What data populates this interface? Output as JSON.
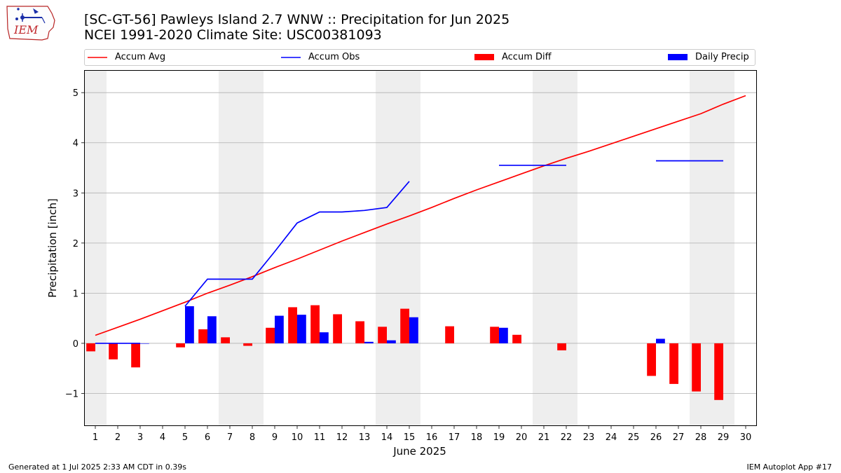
{
  "logo": {
    "text": "IEM",
    "icon": "iem-iowa-logo-icon"
  },
  "header": {
    "title": "[SC-GT-56] Pawleys Island 2.7 WNW :: Precipitation for Jun 2025",
    "subtitle": "NCEI 1991-2020 Climate Site: USC00381093"
  },
  "footer": {
    "left": "Generated at 1 Jul 2025 2:33 AM CDT in 0.39s",
    "right": "IEM Autoplot App #17"
  },
  "legend": [
    {
      "label": "Accum Avg",
      "kind": "line",
      "color": "#ff0000"
    },
    {
      "label": "Accum Obs",
      "kind": "line",
      "color": "#0000ff"
    },
    {
      "label": "Accum Diff",
      "kind": "bar",
      "color": "#ff0000"
    },
    {
      "label": "Daily Precip",
      "kind": "bar",
      "color": "#0000ff"
    }
  ],
  "chart_data": {
    "type": "bar",
    "xlabel": "June 2025",
    "ylabel": "Precipitation [inch]",
    "xlim": [
      0.5,
      30.5
    ],
    "ylim": [
      -1.65,
      5.45
    ],
    "x_ticks": [
      1,
      2,
      3,
      4,
      5,
      6,
      7,
      8,
      9,
      10,
      11,
      12,
      13,
      14,
      15,
      16,
      17,
      18,
      19,
      20,
      21,
      22,
      23,
      24,
      25,
      26,
      27,
      28,
      29,
      30
    ],
    "y_ticks": [
      -1,
      0,
      1,
      2,
      3,
      4,
      5
    ],
    "grid": "y",
    "weekend_shading": [
      [
        0.5,
        1.5
      ],
      [
        6.5,
        8.5
      ],
      [
        13.5,
        15.5
      ],
      [
        20.5,
        22.5
      ],
      [
        27.5,
        29.5
      ]
    ],
    "shading_color": "#eeeeee",
    "series": [
      {
        "name": "Accum Avg",
        "kind": "line",
        "color": "#ff0000",
        "x": [
          1,
          2,
          3,
          4,
          5,
          6,
          7,
          8,
          9,
          10,
          11,
          12,
          13,
          14,
          15,
          16,
          17,
          18,
          19,
          20,
          21,
          22,
          23,
          24,
          25,
          26,
          27,
          28,
          29,
          30
        ],
        "values": [
          0.16,
          0.32,
          0.48,
          0.65,
          0.82,
          1.0,
          1.16,
          1.33,
          1.51,
          1.68,
          1.86,
          2.04,
          2.21,
          2.38,
          2.54,
          2.71,
          2.89,
          3.06,
          3.22,
          3.38,
          3.54,
          3.69,
          3.83,
          3.98,
          4.13,
          4.28,
          4.43,
          4.58,
          4.77,
          4.94
        ]
      },
      {
        "name": "Accum Obs",
        "kind": "line",
        "color": "#0000ff",
        "segments": [
          {
            "x": [
              1,
              2,
              3
            ],
            "values": [
              0.0,
              0.0,
              0.0
            ]
          },
          {
            "x": [
              5,
              6,
              7,
              8,
              9,
              10,
              11,
              12,
              13,
              14,
              15
            ],
            "values": [
              0.74,
              1.28,
              1.28,
              1.28,
              1.83,
              2.4,
              2.62,
              2.62,
              2.65,
              2.71,
              3.23
            ]
          },
          {
            "x": [
              19,
              20,
              21,
              22
            ],
            "values": [
              3.55,
              3.55,
              3.55,
              3.55
            ]
          },
          {
            "x": [
              26,
              27,
              28,
              29
            ],
            "values": [
              3.64,
              3.64,
              3.64,
              3.64
            ]
          }
        ]
      },
      {
        "name": "Accum Diff",
        "kind": "bar",
        "color": "#ff0000",
        "x": [
          1,
          2,
          3,
          5,
          6,
          7,
          8,
          9,
          10,
          11,
          12,
          13,
          14,
          15,
          17,
          19,
          20,
          22,
          26,
          27,
          28,
          29
        ],
        "values": [
          -0.16,
          -0.32,
          -0.48,
          -0.08,
          0.28,
          0.12,
          -0.05,
          0.31,
          0.72,
          0.76,
          0.58,
          0.44,
          0.33,
          0.69,
          0.34,
          0.33,
          0.17,
          -0.14,
          -0.65,
          -0.81,
          -0.96,
          -1.13
        ]
      },
      {
        "name": "Daily Precip",
        "kind": "bar",
        "color": "#0000ff",
        "x": [
          1,
          2,
          3,
          5,
          6,
          9,
          10,
          11,
          13,
          14,
          15,
          19,
          26
        ],
        "values": [
          0.0,
          0.0,
          0.0,
          0.74,
          0.54,
          0.55,
          0.57,
          0.22,
          0.03,
          0.06,
          0.52,
          0.31,
          0.09
        ]
      }
    ]
  }
}
